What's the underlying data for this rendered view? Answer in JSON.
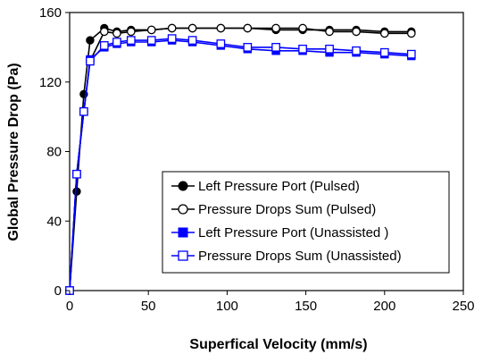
{
  "chart_data": {
    "type": "line",
    "xlabel": "Superfical Velocity (mm/s)",
    "ylabel": "Global Pressure Drop (Pa)",
    "xlim": [
      0,
      250
    ],
    "ylim": [
      0,
      160
    ],
    "xticks": [
      "0",
      "50",
      "100",
      "150",
      "200",
      "250"
    ],
    "yticks": [
      "0",
      "40",
      "80",
      "120",
      "160"
    ],
    "grid": false,
    "legend_position": "lower-right",
    "series": [
      {
        "name": "Left Pressure Port (Pulsed)",
        "color": "#000000",
        "marker": "filled-circle",
        "x": [
          0,
          4.5,
          9,
          13,
          22,
          30,
          39,
          52,
          65,
          78,
          96,
          113,
          131,
          148,
          165,
          182,
          200,
          217
        ],
        "y": [
          0,
          57,
          113,
          144,
          151,
          149,
          150,
          150,
          151,
          151,
          151,
          151,
          150,
          150,
          150,
          150,
          149,
          149
        ]
      },
      {
        "name": "Pressure Drops Sum (Pulsed)",
        "color": "#000000",
        "marker": "open-circle",
        "x": [
          0,
          4.5,
          9,
          13,
          22,
          30,
          39,
          52,
          65,
          78,
          96,
          113,
          131,
          148,
          165,
          182,
          200,
          217
        ],
        "y": [
          0,
          67,
          103,
          132,
          149,
          148,
          149,
          150,
          151,
          151,
          151,
          151,
          151,
          151,
          149,
          149,
          148,
          148
        ]
      },
      {
        "name": "Left Pressure Port (Unassisted )",
        "color": "#0000ff",
        "marker": "filled-square",
        "x": [
          0,
          4.5,
          9,
          13,
          22,
          30,
          39,
          52,
          65,
          78,
          96,
          113,
          131,
          148,
          165,
          182,
          200,
          217
        ],
        "y": [
          0,
          67,
          103,
          133,
          140,
          142,
          143,
          143,
          144,
          143,
          141,
          139,
          138,
          138,
          137,
          137,
          136,
          135
        ]
      },
      {
        "name": "Pressure Drops Sum (Unassisted)",
        "color": "#0000ff",
        "marker": "open-square",
        "x": [
          0,
          4.5,
          9,
          13,
          22,
          30,
          39,
          52,
          65,
          78,
          96,
          113,
          131,
          148,
          165,
          182,
          200,
          217
        ],
        "y": [
          0,
          67,
          103,
          132,
          141,
          143,
          144,
          144,
          145,
          144,
          142,
          140,
          140,
          139,
          139,
          138,
          137,
          136
        ]
      }
    ]
  }
}
